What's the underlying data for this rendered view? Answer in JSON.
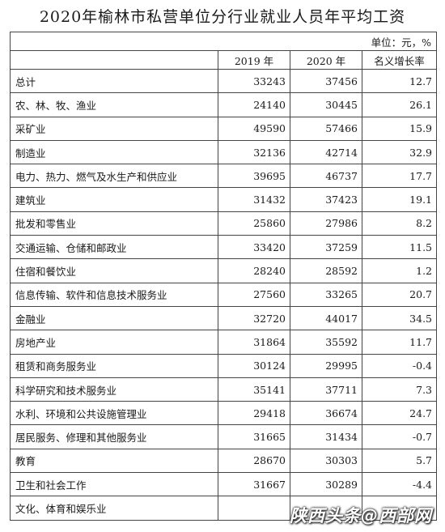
{
  "title": "2020年榆林市私营单位分行业就业人员年平均工资",
  "unit": "单位：元，%",
  "headers": [
    "",
    "2019 年",
    "2020 年",
    "名义增长率"
  ],
  "rows": [
    [
      "总计",
      "33243",
      "37456",
      "12.7"
    ],
    [
      "农、林、牧、渔业",
      "24140",
      "30445",
      "26.1"
    ],
    [
      "采矿业",
      "49590",
      "57466",
      "15.9"
    ],
    [
      "制造业",
      "32136",
      "42714",
      "32.9"
    ],
    [
      "电力、热力、燃气及水生产和供应业",
      "39695",
      "46737",
      "17.7"
    ],
    [
      "建筑业",
      "31432",
      "37423",
      "19.1"
    ],
    [
      "批发和零售业",
      "25860",
      "27986",
      "8.2"
    ],
    [
      "交通运输、仓储和邮政业",
      "33420",
      "37259",
      "11.5"
    ],
    [
      "住宿和餐饮业",
      "28240",
      "28592",
      "1.2"
    ],
    [
      "信息传输、软件和信息技术服务业",
      "27560",
      "33265",
      "20.7"
    ],
    [
      "金融业",
      "32720",
      "44017",
      "34.5"
    ],
    [
      "房地产业",
      "31864",
      "35592",
      "11.7"
    ],
    [
      "租赁和商务服务业",
      "30124",
      "29995",
      "-0.4"
    ],
    [
      "科学研究和技术服务业",
      "35141",
      "37711",
      "7.3"
    ],
    [
      "水利、环境和公共设施管理业",
      "29418",
      "36674",
      "24.7"
    ],
    [
      "居民服务、修理和其他服务业",
      "31665",
      "31434",
      "-0.7"
    ],
    [
      "教育",
      "28670",
      "30303",
      "5.7"
    ],
    [
      "卫生和社会工作",
      "31667",
      "30289",
      "-4.4"
    ],
    [
      "文化、体育和娱乐业",
      "",
      "",
      ""
    ]
  ],
  "watermark": "陕西头条@西部网"
}
